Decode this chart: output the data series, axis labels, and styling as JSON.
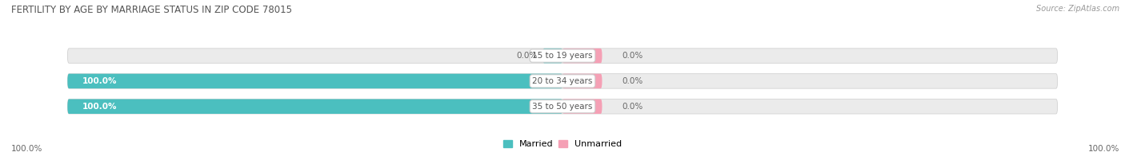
{
  "title": "FERTILITY BY AGE BY MARRIAGE STATUS IN ZIP CODE 78015",
  "source": "Source: ZipAtlas.com",
  "categories": [
    "15 to 19 years",
    "20 to 34 years",
    "35 to 50 years"
  ],
  "married_values": [
    0.0,
    100.0,
    100.0
  ],
  "unmarried_values": [
    0.0,
    0.0,
    0.0
  ],
  "married_color": "#4bbfbf",
  "unmarried_color": "#f5a0b5",
  "bar_bg_color_left": "#e0e8ea",
  "bar_bg_color_right": "#eeeeee",
  "bar_height": 0.58,
  "title_color": "#555555",
  "source_color": "#999999",
  "axis_label_left": "100.0%",
  "axis_label_right": "100.0%",
  "fig_bg_color": "#ffffff",
  "legend_married": "Married",
  "legend_unmarried": "Unmarried",
  "label_color_on_bar": "#ffffff",
  "label_color_off_bar": "#666666"
}
